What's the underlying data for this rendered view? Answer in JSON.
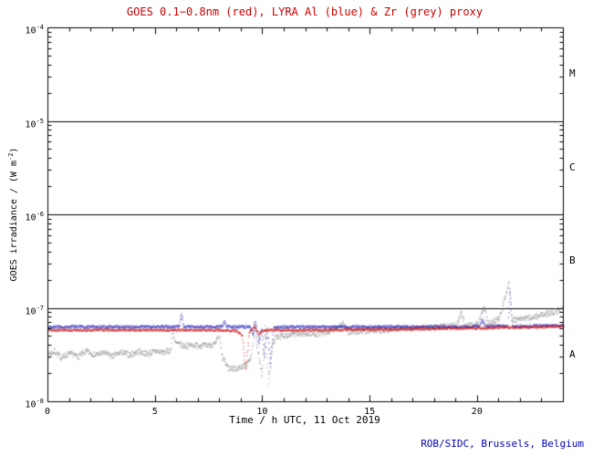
{
  "page": {
    "credit": "ROB/SIDC, Brussels, Belgium"
  },
  "chart_data": {
    "type": "line",
    "title": "GOES 0.1−0.8nm (red), LYRA Al (blue) & Zr (grey) proxy",
    "xlabel": "Time / h UTC, 11 Oct 2019",
    "ylabel": {
      "pre": "GOES irradiance / (W m",
      "sup": "-2",
      "post": ")"
    },
    "x_range": [
      0,
      24
    ],
    "y_range_log": [
      -8,
      -4
    ],
    "grid": false,
    "legend": "in title (colors)",
    "x_ticks": [
      {
        "value": 0,
        "label": "0"
      },
      {
        "value": 5,
        "label": "5"
      },
      {
        "value": 10,
        "label": "10"
      },
      {
        "value": 15,
        "label": "15"
      },
      {
        "value": 20,
        "label": "20"
      }
    ],
    "y_ticks": [
      {
        "value": 0.0001,
        "base": "10",
        "sup": "-4"
      },
      {
        "value": 1e-05,
        "base": "10",
        "sup": "-5"
      },
      {
        "value": 1e-06,
        "base": "10",
        "sup": "-6"
      },
      {
        "value": 1e-07,
        "base": "10",
        "sup": "-7"
      },
      {
        "value": 1e-08,
        "base": "10",
        "sup": "-8"
      }
    ],
    "reference_lines": [
      1e-05,
      1e-06,
      1e-07
    ],
    "flare_classes": [
      {
        "label": "M",
        "between": [
          1e-05,
          0.0001
        ]
      },
      {
        "label": "C",
        "between": [
          1e-06,
          1e-05
        ]
      },
      {
        "label": "B",
        "between": [
          1e-07,
          1e-06
        ]
      },
      {
        "label": "A",
        "between": [
          1e-08,
          1e-07
        ]
      }
    ],
    "colors": {
      "goes": "#cc1111",
      "lyra_al": "#2222bb",
      "zr": "#8a8a8a",
      "title": "#cc0000",
      "credit": "#0000bb",
      "axis": "#000000"
    },
    "series": [
      {
        "name": "Zr (grey) proxy",
        "color_key": "zr",
        "noise": 0.07,
        "points": [
          [
            0.0,
            3.2e-08
          ],
          [
            0.3,
            3.5e-08
          ],
          [
            0.6,
            3e-08
          ],
          [
            1.0,
            3.3e-08
          ],
          [
            1.4,
            3.1e-08
          ],
          [
            1.8,
            3.5e-08
          ],
          [
            2.2,
            3.2e-08
          ],
          [
            2.6,
            3.4e-08
          ],
          [
            3.0,
            3.1e-08
          ],
          [
            3.4,
            3.4e-08
          ],
          [
            3.8,
            3.2e-08
          ],
          [
            4.2,
            3.5e-08
          ],
          [
            4.6,
            3.3e-08
          ],
          [
            5.0,
            3.5e-08
          ],
          [
            5.4,
            3.4e-08
          ],
          [
            5.7,
            3.6e-08
          ],
          [
            5.8,
            6.2e-08
          ],
          [
            5.9,
            4.3e-08
          ],
          [
            6.3,
            4e-08
          ],
          [
            6.8,
            4.1e-08
          ],
          [
            7.3,
            4e-08
          ],
          [
            7.8,
            4.2e-08
          ],
          [
            7.95,
            5.5e-08
          ],
          [
            8.1,
            3e-08
          ],
          [
            8.4,
            2.3e-08
          ],
          [
            8.8,
            2.3e-08
          ],
          [
            9.2,
            2.5e-08
          ],
          [
            9.45,
            3e-08
          ],
          [
            9.6,
            7e-08
          ],
          [
            9.75,
            3.5e-08
          ],
          [
            9.95,
            1.9e-08
          ],
          [
            10.1,
            6.5e-08
          ],
          [
            10.25,
            1.6e-08
          ],
          [
            10.4,
            4e-08
          ],
          [
            10.6,
            5e-08
          ],
          [
            11.0,
            5.2e-08
          ],
          [
            11.5,
            5.3e-08
          ],
          [
            12.0,
            5.4e-08
          ],
          [
            12.5,
            5.4e-08
          ],
          [
            13.0,
            5.5e-08
          ],
          [
            13.75,
            7e-08
          ],
          [
            13.9,
            5.6e-08
          ],
          [
            14.5,
            5.7e-08
          ],
          [
            15.0,
            5.8e-08
          ],
          [
            15.5,
            5.9e-08
          ],
          [
            16.0,
            6e-08
          ],
          [
            16.5,
            6.1e-08
          ],
          [
            17.0,
            6.2e-08
          ],
          [
            17.5,
            6.3e-08
          ],
          [
            18.0,
            6.4e-08
          ],
          [
            18.5,
            6.5e-08
          ],
          [
            19.0,
            6.6e-08
          ],
          [
            19.25,
            9e-08
          ],
          [
            19.4,
            6.6e-08
          ],
          [
            20.0,
            6.8e-08
          ],
          [
            20.3,
            1.05e-07
          ],
          [
            20.45,
            7e-08
          ],
          [
            21.0,
            7.8e-08
          ],
          [
            21.45,
            1.9e-07
          ],
          [
            21.6,
            7.5e-08
          ],
          [
            22.0,
            7.8e-08
          ],
          [
            22.5,
            8.1e-08
          ],
          [
            23.0,
            8.5e-08
          ],
          [
            23.5,
            9.2e-08
          ],
          [
            24.0,
            1e-07
          ]
        ]
      },
      {
        "name": "LYRA Al (blue) proxy",
        "color_key": "lyra_al",
        "noise": 0.03,
        "points": [
          [
            0,
            6.4e-08
          ],
          [
            1,
            6.4e-08
          ],
          [
            2,
            6.4e-08
          ],
          [
            3,
            6.4e-08
          ],
          [
            4,
            6.4e-08
          ],
          [
            5,
            6.4e-08
          ],
          [
            6.1,
            6.4e-08
          ],
          [
            6.2,
            8.8e-08
          ],
          [
            6.3,
            6.4e-08
          ],
          [
            7,
            6.4e-08
          ],
          [
            8.1,
            6.4e-08
          ],
          [
            8.2,
            7.3e-08
          ],
          [
            8.3,
            6.4e-08
          ],
          [
            9.4,
            6.4e-08
          ],
          [
            9.55,
            5.2e-08
          ],
          [
            9.65,
            7.5e-08
          ],
          [
            9.8,
            4.2e-08
          ],
          [
            9.95,
            6.2e-08
          ],
          [
            10.05,
            3e-08
          ],
          [
            10.2,
            6.2e-08
          ],
          [
            10.35,
            2.4e-08
          ],
          [
            10.5,
            6.3e-08
          ],
          [
            11,
            6.4e-08
          ],
          [
            12,
            6.4e-08
          ],
          [
            13,
            6.4e-08
          ],
          [
            14,
            6.4e-08
          ],
          [
            15,
            6.4e-08
          ],
          [
            16,
            6.4e-08
          ],
          [
            17,
            6.4e-08
          ],
          [
            18,
            6.4e-08
          ],
          [
            19,
            6.4e-08
          ],
          [
            20.1,
            6.5e-08
          ],
          [
            20.2,
            7.6e-08
          ],
          [
            20.35,
            6.5e-08
          ],
          [
            21.4,
            6.5e-08
          ],
          [
            21.5,
            1.6e-07
          ],
          [
            21.6,
            6.5e-08
          ],
          [
            22.5,
            6.5e-08
          ],
          [
            23.5,
            6.6e-08
          ],
          [
            24,
            6.6e-08
          ]
        ]
      },
      {
        "name": "GOES 0.1-0.8nm (red)",
        "color_key": "goes",
        "noise": 0.03,
        "points": [
          [
            0,
            5.9e-08
          ],
          [
            1,
            5.9e-08
          ],
          [
            2,
            5.9e-08
          ],
          [
            3,
            5.9e-08
          ],
          [
            4,
            5.9e-08
          ],
          [
            5,
            5.9e-08
          ],
          [
            6,
            5.9e-08
          ],
          [
            7,
            5.9e-08
          ],
          [
            8,
            5.9e-08
          ],
          [
            8.8,
            5.8e-08
          ],
          [
            9.05,
            5e-08
          ],
          [
            9.2,
            2.2e-08
          ],
          [
            9.35,
            5.4e-08
          ],
          [
            9.6,
            6.6e-08
          ],
          [
            9.8,
            5.3e-08
          ],
          [
            10.0,
            5.8e-08
          ],
          [
            10.5,
            5.9e-08
          ],
          [
            11,
            5.9e-08
          ],
          [
            12,
            5.9e-08
          ],
          [
            13,
            5.9e-08
          ],
          [
            14,
            6e-08
          ],
          [
            15,
            6e-08
          ],
          [
            16,
            6e-08
          ],
          [
            17,
            6.1e-08
          ],
          [
            18,
            6.1e-08
          ],
          [
            19,
            6.2e-08
          ],
          [
            20,
            6.2e-08
          ],
          [
            21,
            6.3e-08
          ],
          [
            22,
            6.3e-08
          ],
          [
            23,
            6.4e-08
          ],
          [
            24,
            6.5e-08
          ]
        ]
      }
    ]
  }
}
